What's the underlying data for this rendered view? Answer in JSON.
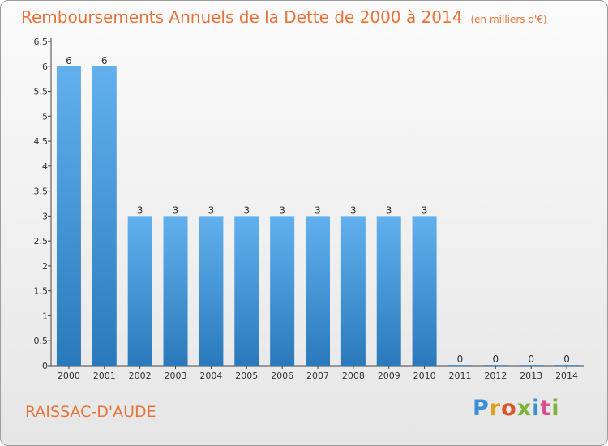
{
  "header": {
    "title": "Remboursements Annuels de la Dette de 2000 à 2014",
    "unit": "(en milliers d'€)"
  },
  "footer": {
    "commune": "RAISSAC-D'AUDE",
    "brand": "Proxiti"
  },
  "colors": {
    "title": "#e8733a",
    "bar_top": "#62b1ee",
    "bar_bottom": "#2a79bb"
  },
  "chart_data": {
    "type": "bar",
    "title": "Remboursements Annuels de la Dette de 2000 à 2014",
    "subtitle": "(en milliers d'€)",
    "xlabel": "",
    "ylabel": "",
    "categories": [
      "2000",
      "2001",
      "2002",
      "2003",
      "2004",
      "2005",
      "2006",
      "2007",
      "2008",
      "2009",
      "2010",
      "2011",
      "2012",
      "2013",
      "2014"
    ],
    "values": [
      6,
      6,
      3,
      3,
      3,
      3,
      3,
      3,
      3,
      3,
      3,
      0,
      0,
      0,
      0
    ],
    "value_labels": [
      "6",
      "6",
      "3",
      "3",
      "3",
      "3",
      "3",
      "3",
      "3",
      "3",
      "3",
      "0",
      "0",
      "0",
      "0"
    ],
    "ylim": [
      0,
      6.5
    ],
    "yticks": [
      "0",
      "0.5",
      "1",
      "1.5",
      "2",
      "2.5",
      "3",
      "3.5",
      "4",
      "4.5",
      "5",
      "5.5",
      "6",
      "6.5"
    ],
    "grid": false,
    "legend": "none"
  }
}
